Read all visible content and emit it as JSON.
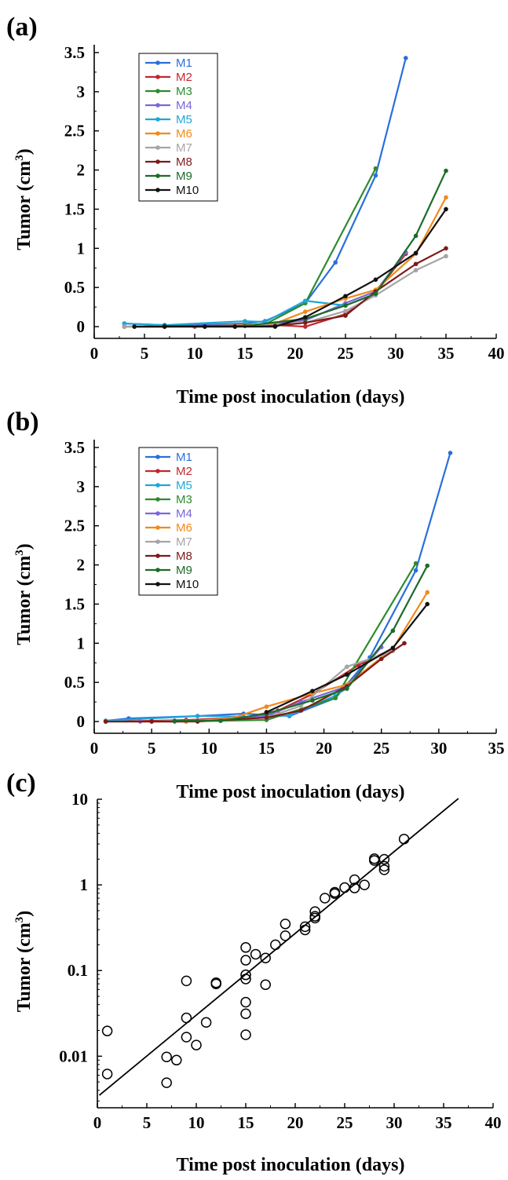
{
  "chart_data": [
    {
      "panel_label": "(a)",
      "type": "line",
      "xlabel": "Time post inoculation  (days)",
      "ylabel_main": "Tumor  (cm",
      "ylabel_sup": "3",
      "ylabel_close": ")",
      "xlim": [
        0,
        40
      ],
      "ylim": [
        -0.15,
        3.6
      ],
      "x_ticks": [
        "0",
        "5",
        "10",
        "15",
        "20",
        "25",
        "30",
        "35",
        "40"
      ],
      "y_ticks": [
        "0",
        "0.5",
        "1",
        "1.5",
        "2",
        "2.5",
        "3",
        "3.5"
      ],
      "grid": false,
      "legend_position": "top-left",
      "series": [
        {
          "name": "M1",
          "color": "#2a6fdb",
          "x": [
            3,
            7,
            10,
            15,
            17,
            21,
            24,
            28,
            31
          ],
          "y": [
            0.04,
            0.02,
            0.02,
            0.04,
            0.07,
            0.3,
            0.82,
            1.93,
            3.43
          ]
        },
        {
          "name": "M2",
          "color": "#c0282e",
          "x": [
            3,
            7,
            10,
            15,
            18,
            21,
            25,
            28,
            31
          ],
          "y": [
            0.0,
            0.01,
            0.0,
            0.01,
            0.02,
            0.0,
            0.16,
            0.43,
            0.93
          ]
        },
        {
          "name": "M3",
          "color": "#2e8b2e",
          "x": [
            3,
            7,
            10,
            15,
            17,
            21,
            28
          ],
          "y": [
            0.0,
            0.01,
            0.01,
            0.01,
            0.03,
            0.3,
            2.02
          ]
        },
        {
          "name": "M4",
          "color": "#7b68d9",
          "x": [
            3,
            7,
            10,
            15,
            18,
            21,
            25,
            28,
            31
          ],
          "y": [
            0.0,
            0.0,
            0.01,
            0.02,
            0.04,
            0.08,
            0.3,
            0.45,
            0.95
          ]
        },
        {
          "name": "M5",
          "color": "#1ea7d8",
          "x": [
            3,
            7,
            15,
            17,
            21,
            25,
            28
          ],
          "y": [
            0.04,
            0.02,
            0.07,
            0.06,
            0.33,
            0.27,
            0.42
          ]
        },
        {
          "name": "M6",
          "color": "#f08a1c",
          "x": [
            3,
            7,
            15,
            18,
            21,
            25,
            28,
            32,
            35
          ],
          "y": [
            0.0,
            0.0,
            0.02,
            0.04,
            0.19,
            0.36,
            0.47,
            0.93,
            1.65
          ]
        },
        {
          "name": "M7",
          "color": "#a5a5a5",
          "x": [
            3,
            7,
            15,
            18,
            21,
            25,
            28,
            32,
            35
          ],
          "y": [
            0.0,
            0.0,
            0.01,
            0.02,
            0.05,
            0.2,
            0.4,
            0.72,
            0.9
          ]
        },
        {
          "name": "M8",
          "color": "#7e1a1a",
          "x": [
            4,
            7,
            11,
            14,
            18,
            21,
            25,
            28,
            32,
            35
          ],
          "y": [
            0.0,
            0.0,
            0.0,
            0.0,
            0.01,
            0.05,
            0.14,
            0.45,
            0.8,
            1.0
          ]
        },
        {
          "name": "M9",
          "color": "#1d6b2a",
          "x": [
            7,
            15,
            21,
            25,
            28,
            32,
            35
          ],
          "y": [
            0.01,
            0.01,
            0.1,
            0.27,
            0.42,
            1.16,
            1.99
          ]
        },
        {
          "name": "M10",
          "color": "#111111",
          "x": [
            4,
            7,
            11,
            14,
            18,
            21,
            25,
            28,
            32,
            35
          ],
          "y": [
            0.0,
            0.0,
            0.0,
            0.0,
            0.0,
            0.12,
            0.39,
            0.6,
            0.94,
            1.5
          ]
        }
      ]
    },
    {
      "panel_label": "(b)",
      "type": "line",
      "xlabel": "Time post inoculation  (days)",
      "ylabel_main": "Tumor  (cm",
      "ylabel_sup": "3",
      "ylabel_close": ")",
      "xlim": [
        0,
        35
      ],
      "ylim": [
        -0.15,
        3.6
      ],
      "x_ticks": [
        "0",
        "5",
        "10",
        "15",
        "20",
        "25",
        "30",
        "35"
      ],
      "y_ticks": [
        "0",
        "0.5",
        "1",
        "1.5",
        "2",
        "2.5",
        "3",
        "3.5"
      ],
      "grid": false,
      "legend_position": "top-left",
      "series": [
        {
          "name": "M1",
          "color": "#2a6fdb",
          "x": [
            1,
            3,
            9,
            13,
            17,
            21,
            24,
            28,
            31
          ],
          "y": [
            0.01,
            0.04,
            0.07,
            0.1,
            0.07,
            0.3,
            0.82,
            1.93,
            3.43
          ]
        },
        {
          "name": "M2",
          "color": "#c0282e",
          "x": [
            1,
            5,
            8,
            13,
            16,
            19,
            23,
            26
          ],
          "y": [
            0.0,
            0.01,
            0.02,
            0.05,
            0.14,
            0.35,
            0.72,
            0.93
          ]
        },
        {
          "name": "M5",
          "color": "#1ea7d8",
          "x": [
            1,
            9,
            15,
            17,
            21,
            22
          ],
          "y": [
            0.01,
            0.07,
            0.06,
            0.08,
            0.33,
            0.43
          ]
        },
        {
          "name": "M3",
          "color": "#2e8b2e",
          "x": [
            7,
            11,
            15,
            21,
            28
          ],
          "y": [
            0.0,
            0.01,
            0.02,
            0.3,
            2.02
          ]
        },
        {
          "name": "M4",
          "color": "#7b68d9",
          "x": [
            4,
            8,
            11,
            15,
            18,
            22,
            25
          ],
          "y": [
            0.0,
            0.0,
            0.02,
            0.07,
            0.25,
            0.45,
            0.95
          ]
        },
        {
          "name": "M6",
          "color": "#f08a1c",
          "x": [
            1,
            5,
            8,
            12,
            15,
            19,
            22,
            26,
            29
          ],
          "y": [
            0.0,
            0.0,
            0.0,
            0.04,
            0.19,
            0.36,
            0.47,
            0.93,
            1.65
          ]
        },
        {
          "name": "M7",
          "color": "#a5a5a5",
          "x": [
            1,
            5,
            11,
            15,
            18,
            22,
            26
          ],
          "y": [
            0.0,
            0.0,
            0.02,
            0.05,
            0.2,
            0.7,
            0.9
          ]
        },
        {
          "name": "M8",
          "color": "#7e1a1a",
          "x": [
            1,
            5,
            9,
            15,
            18,
            22,
            25,
            27
          ],
          "y": [
            0.0,
            0.0,
            0.0,
            0.05,
            0.14,
            0.45,
            0.8,
            1.0
          ]
        },
        {
          "name": "M9",
          "color": "#1d6b2a",
          "x": [
            7,
            11,
            15,
            19,
            22,
            26,
            29
          ],
          "y": [
            0.01,
            0.01,
            0.1,
            0.27,
            0.42,
            1.16,
            1.99
          ]
        },
        {
          "name": "M10",
          "color": "#111111",
          "x": [
            15,
            19,
            22,
            26,
            29
          ],
          "y": [
            0.12,
            0.39,
            0.6,
            0.94,
            1.5
          ]
        }
      ]
    },
    {
      "panel_label": "(c)",
      "type": "scatter",
      "xlabel": "Time post inoculation  (days)",
      "ylabel_main": "Tumor  (cm",
      "ylabel_sup": "3",
      "ylabel_close": ")",
      "xlim": [
        0,
        40
      ],
      "ylim": [
        0.0025,
        10
      ],
      "yscale": "log",
      "x_ticks": [
        "0",
        "5",
        "10",
        "15",
        "20",
        "25",
        "30",
        "35",
        "40"
      ],
      "y_ticks": [
        "0.01",
        "0.1",
        "1",
        "10"
      ],
      "y_tick_values": [
        0.01,
        0.1,
        1,
        10
      ],
      "grid": false,
      "marker": "open-circle",
      "points": [
        [
          1,
          0.0197
        ],
        [
          1,
          0.0062
        ],
        [
          7,
          0.0098
        ],
        [
          7,
          0.0049
        ],
        [
          8,
          0.009
        ],
        [
          9,
          0.0757
        ],
        [
          9,
          0.028
        ],
        [
          9,
          0.0167
        ],
        [
          10,
          0.0135
        ],
        [
          11,
          0.0248
        ],
        [
          12,
          0.0698
        ],
        [
          12,
          0.072
        ],
        [
          15,
          0.186
        ],
        [
          15,
          0.132
        ],
        [
          15,
          0.0891
        ],
        [
          15,
          0.0797
        ],
        [
          15,
          0.0427
        ],
        [
          15,
          0.0313
        ],
        [
          15,
          0.0178
        ],
        [
          16,
          0.155
        ],
        [
          17,
          0.14
        ],
        [
          17,
          0.0684
        ],
        [
          18,
          0.2
        ],
        [
          19,
          0.255
        ],
        [
          19,
          0.35
        ],
        [
          21,
          0.298
        ],
        [
          21,
          0.325
        ],
        [
          22,
          0.41
        ],
        [
          22,
          0.43
        ],
        [
          22,
          0.488
        ],
        [
          23,
          0.7
        ],
        [
          24,
          0.79
        ],
        [
          24,
          0.82
        ],
        [
          25,
          0.93
        ],
        [
          26,
          0.92
        ],
        [
          26,
          1.15
        ],
        [
          27,
          1.0
        ],
        [
          28,
          1.93
        ],
        [
          28,
          2.02
        ],
        [
          29,
          1.5
        ],
        [
          29,
          1.65
        ],
        [
          29,
          1.99
        ],
        [
          31,
          3.43
        ]
      ],
      "fit_line": {
        "x": [
          0.2,
          36.5
        ],
        "y": [
          0.0035,
          10.2
        ]
      }
    }
  ]
}
